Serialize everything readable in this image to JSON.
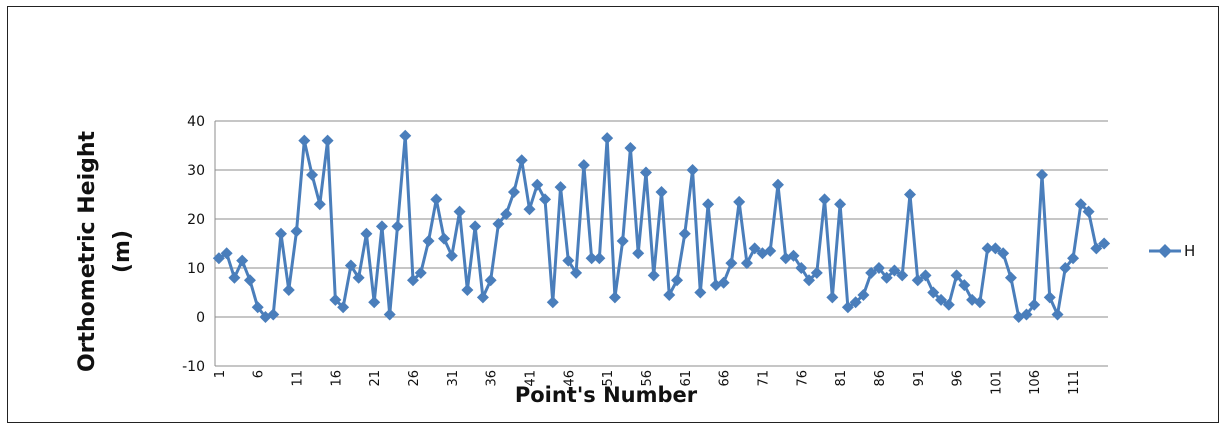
{
  "chart_data": {
    "type": "line",
    "title": "",
    "xlabel": "Point's Number",
    "ylabel": "Orthometric Height (m)",
    "ylabel_lines": [
      "Orthometric Height",
      "(m)"
    ],
    "ylim": [
      -10,
      40
    ],
    "yticks": [
      "-10",
      "0",
      "10",
      "20",
      "30",
      "40"
    ],
    "xtick_labels": [
      "1",
      "6",
      "11",
      "16",
      "21",
      "26",
      "31",
      "36",
      "41",
      "46",
      "51",
      "56",
      "61",
      "66",
      "71",
      "76",
      "81",
      "86",
      "91",
      "96",
      "101",
      "106",
      "111"
    ],
    "grid": true,
    "legend": "right",
    "series": [
      {
        "name": "H",
        "color": "#4A7EBB",
        "marker": "diamond",
        "values": [
          12,
          13,
          8,
          11.5,
          7.5,
          2,
          0,
          0.5,
          17,
          5.5,
          17.5,
          36,
          29,
          23,
          36,
          3.5,
          2,
          10.5,
          8,
          17,
          3,
          18.5,
          0.5,
          18.5,
          37,
          7.5,
          9,
          15.5,
          24,
          16,
          12.5,
          21.5,
          5.5,
          18.5,
          4,
          7.5,
          19,
          21,
          25.5,
          32,
          22,
          27,
          24,
          3,
          26.5,
          11.5,
          9,
          31,
          12,
          12,
          36.5,
          4,
          15.5,
          34.5,
          13,
          29.5,
          8.5,
          25.5,
          4.5,
          7.5,
          17,
          30,
          5,
          23,
          6.5,
          7,
          11,
          23.5,
          11,
          14,
          13,
          13.5,
          27,
          12,
          12.5,
          10,
          7.5,
          9,
          24,
          4,
          23,
          2,
          3,
          4.5,
          9,
          10,
          8,
          9.5,
          8.5,
          25,
          7.5,
          8.5,
          5,
          3.5,
          2.5,
          8.5,
          6.5,
          3.5,
          3,
          14,
          14,
          13,
          8,
          0,
          0.5,
          2.5,
          29,
          4,
          0.5,
          10,
          12,
          23,
          21.5,
          14,
          15
        ]
      }
    ]
  }
}
